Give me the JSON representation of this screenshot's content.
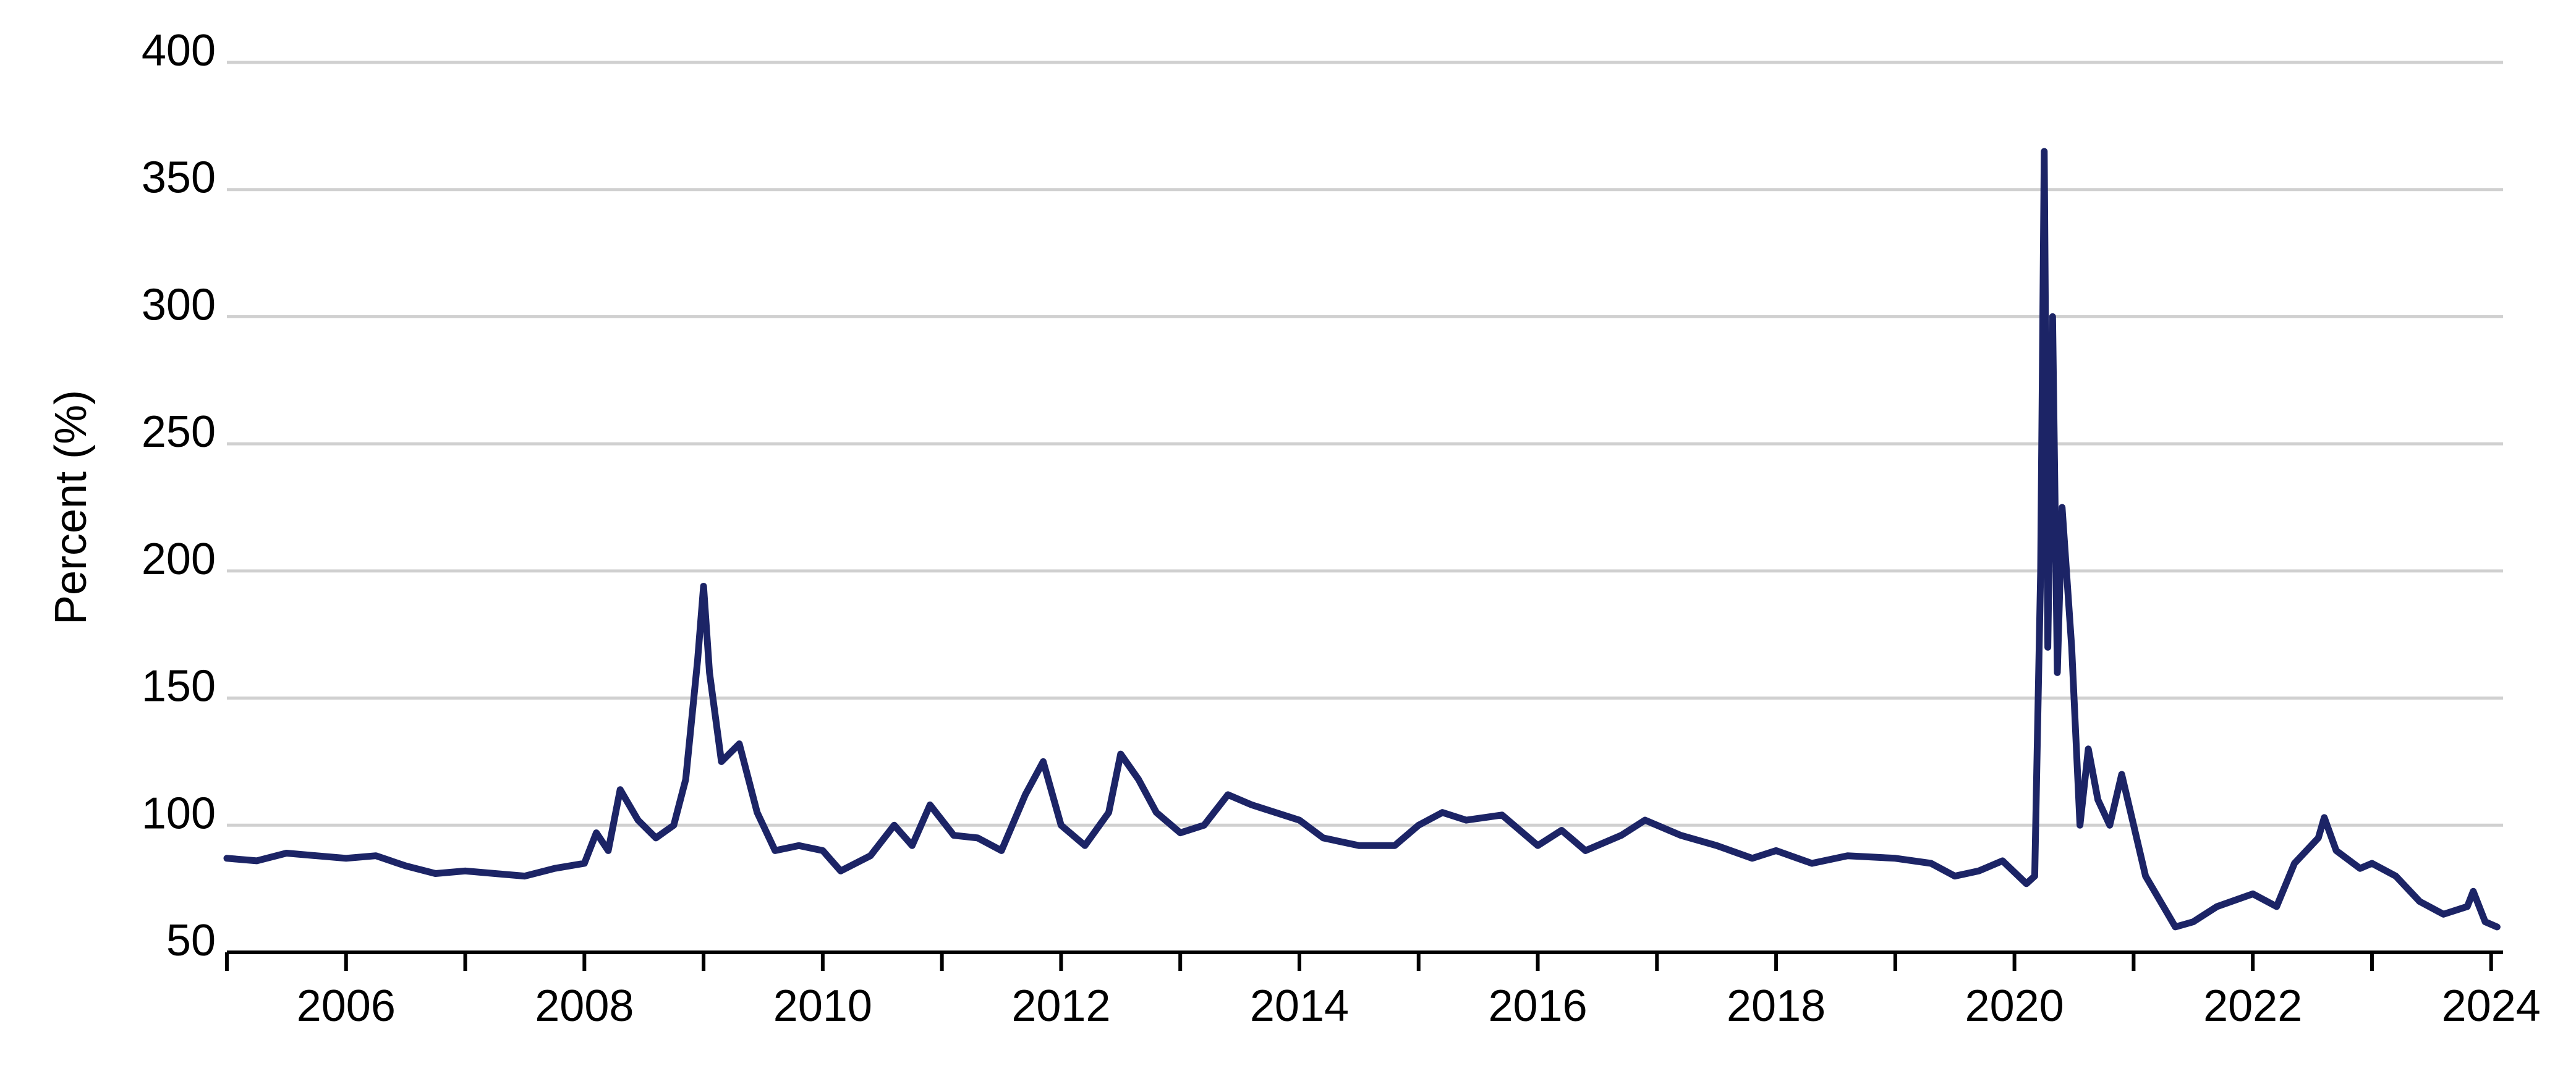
{
  "chart_data": {
    "type": "line",
    "y_label": "Percent (%)",
    "x": [
      2005.0,
      2005.25,
      2005.5,
      2005.75,
      2006.0,
      2006.25,
      2006.5,
      2006.75,
      2007.0,
      2007.25,
      2007.5,
      2007.75,
      2008.0,
      2008.1,
      2008.2,
      2008.3,
      2008.45,
      2008.6,
      2008.75,
      2008.85,
      2008.95,
      2009.0,
      2009.05,
      2009.15,
      2009.3,
      2009.45,
      2009.6,
      2009.8,
      2010.0,
      2010.15,
      2010.4,
      2010.6,
      2010.75,
      2010.9,
      2011.1,
      2011.3,
      2011.5,
      2011.7,
      2011.85,
      2012.0,
      2012.2,
      2012.4,
      2012.5,
      2012.65,
      2012.8,
      2013.0,
      2013.2,
      2013.4,
      2013.6,
      2013.8,
      2014.0,
      2014.2,
      2014.5,
      2014.8,
      2015.0,
      2015.2,
      2015.4,
      2015.7,
      2016.0,
      2016.2,
      2016.4,
      2016.7,
      2016.9,
      2017.2,
      2017.5,
      2017.8,
      2018.0,
      2018.3,
      2018.6,
      2019.0,
      2019.3,
      2019.5,
      2019.7,
      2019.9,
      2020.1,
      2020.17,
      2020.22,
      2020.25,
      2020.28,
      2020.32,
      2020.36,
      2020.4,
      2020.48,
      2020.55,
      2020.62,
      2020.7,
      2020.8,
      2020.9,
      2021.0,
      2021.1,
      2021.25,
      2021.35,
      2021.5,
      2021.7,
      2022.0,
      2022.2,
      2022.35,
      2022.55,
      2022.6,
      2022.7,
      2022.9,
      2023.0,
      2023.2,
      2023.4,
      2023.6,
      2023.8,
      2023.85,
      2023.95,
      2024.05
    ],
    "series": [
      {
        "color": "#1c2466",
        "values": [
          87,
          86,
          89,
          88,
          87,
          88,
          84,
          81,
          82,
          81,
          80,
          83,
          85,
          97,
          90,
          114,
          102,
          95,
          100,
          118,
          165,
          194,
          160,
          125,
          132,
          105,
          90,
          92,
          90,
          82,
          88,
          100,
          92,
          108,
          96,
          95,
          90,
          112,
          125,
          100,
          92,
          105,
          128,
          118,
          105,
          97,
          100,
          112,
          108,
          105,
          102,
          95,
          92,
          92,
          100,
          105,
          102,
          104,
          92,
          98,
          90,
          96,
          102,
          96,
          92,
          87,
          90,
          85,
          88,
          87,
          85,
          80,
          82,
          86,
          77,
          80,
          200,
          365,
          170,
          300,
          160,
          225,
          170,
          100,
          130,
          110,
          100,
          120,
          100,
          80,
          68,
          60,
          62,
          68,
          73,
          68,
          85,
          95,
          103,
          90,
          83,
          85,
          80,
          70,
          65,
          68,
          74,
          62,
          60
        ]
      }
    ],
    "xlim": [
      2005.0,
      2024.1
    ],
    "xticks": [
      2006,
      2008,
      2010,
      2012,
      2014,
      2016,
      2018,
      2020,
      2022,
      2024
    ],
    "x_minor_ticks": [
      2005,
      2007,
      2009,
      2011,
      2013,
      2015,
      2017,
      2019,
      2021,
      2023
    ],
    "ylim": [
      50,
      400
    ],
    "yticks": [
      50,
      100,
      150,
      200,
      250,
      300,
      350,
      400
    ],
    "grid": true
  }
}
